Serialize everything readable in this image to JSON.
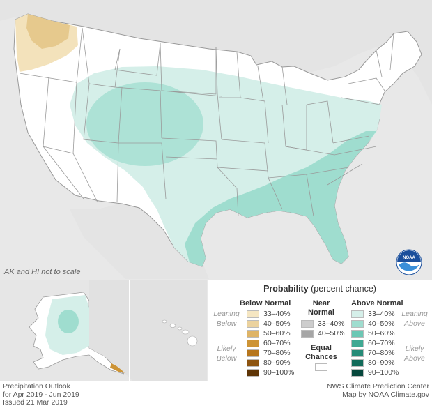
{
  "map": {
    "scale_note": "AK and HI not to scale",
    "logo_name": "noaa-logo",
    "colors": {
      "background": "#e8e8e8",
      "land": "#ffffff",
      "above_33_40": "#d5efe9",
      "above_40_50": "#9fddcf",
      "below_33_40": "#f3e2bb",
      "below_40_50": "#e6c98d",
      "border": "#999999"
    }
  },
  "legend": {
    "title_bold": "Probability",
    "title_rest": " (percent chance)",
    "below_normal": {
      "heading": "Below Normal",
      "side_top": [
        "Leaning",
        "Below"
      ],
      "side_bottom": [
        "Likely",
        "Below"
      ],
      "items": [
        {
          "label": "33–40%",
          "color": "#f5e6c2"
        },
        {
          "label": "40–50%",
          "color": "#ebd29e"
        },
        {
          "label": "50–60%",
          "color": "#deb467"
        },
        {
          "label": "60–70%",
          "color": "#cd9436"
        },
        {
          "label": "70–80%",
          "color": "#b6761d"
        },
        {
          "label": "80–90%",
          "color": "#8d5410"
        },
        {
          "label": "90–100%",
          "color": "#5e3506"
        }
      ]
    },
    "near_normal": {
      "heading": [
        "Near",
        "Normal"
      ],
      "items": [
        {
          "label": "33–40%",
          "color": "#cdcdcd"
        },
        {
          "label": "40–50%",
          "color": "#a6a6a6"
        }
      ]
    },
    "equal_chances": {
      "heading": [
        "Equal",
        "Chances"
      ],
      "color": "#ffffff"
    },
    "above_normal": {
      "heading": "Above Normal",
      "side_top": [
        "Leaning",
        "Above"
      ],
      "side_bottom": [
        "Likely",
        "Above"
      ],
      "items": [
        {
          "label": "33–40%",
          "color": "#d5efe9"
        },
        {
          "label": "40–50%",
          "color": "#9fddcf"
        },
        {
          "label": "50–60%",
          "color": "#6cc7b4"
        },
        {
          "label": "60–70%",
          "color": "#3fa993"
        },
        {
          "label": "70–80%",
          "color": "#268b77"
        },
        {
          "label": "80–90%",
          "color": "#126b5a"
        },
        {
          "label": "90–100%",
          "color": "#06473c"
        }
      ]
    }
  },
  "footer": {
    "left": [
      "Precipitation Outlook",
      "for Apr 2019 - Jun 2019",
      "Issued 21 Mar 2019"
    ],
    "right": [
      "NWS Climate Prediction Center",
      "Map by NOAA Climate.gov"
    ]
  }
}
